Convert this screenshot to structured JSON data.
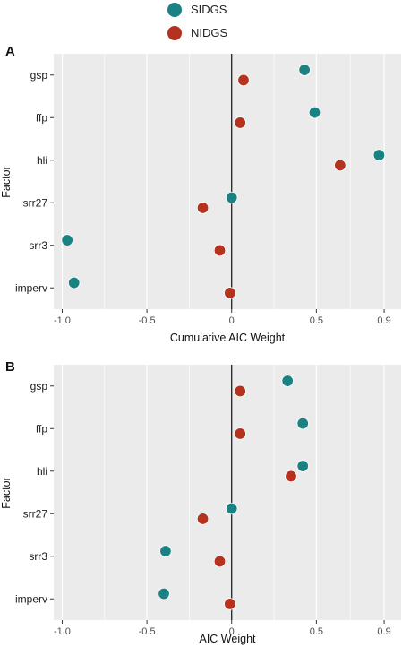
{
  "legend": {
    "items": [
      {
        "label": "SIDGS",
        "color": "#1a8282"
      },
      {
        "label": "NIDGS",
        "color": "#b5321f"
      }
    ]
  },
  "panel_style": {
    "background": "#ebebeb",
    "grid": "#ffffff",
    "zero_line": "#111111"
  },
  "chart_data": [
    {
      "type": "scatter",
      "panel_label": "A",
      "xlabel": "Cumulative AIC Weight",
      "ylabel": "Factor",
      "xlim": [
        -1.05,
        1.0
      ],
      "xticks": [
        -1.0,
        -0.5,
        0,
        0.5,
        0.9
      ],
      "xtick_labels": [
        "-1.0",
        "-0.5",
        "0",
        "0.5",
        "0.9"
      ],
      "categories": [
        "gsp",
        "ffp",
        "hli",
        "srr27",
        "srr3",
        "imperv"
      ],
      "grid": true,
      "legend": "top-center",
      "series": [
        {
          "name": "SIDGS",
          "values": [
            0.43,
            0.49,
            0.87,
            0.0,
            -0.97,
            -0.93
          ]
        },
        {
          "name": "NIDGS",
          "values": [
            0.07,
            0.05,
            0.64,
            -0.17,
            -0.07,
            -0.01
          ]
        }
      ]
    },
    {
      "type": "scatter",
      "panel_label": "B",
      "xlabel": "AIC Weight",
      "ylabel": "Factor",
      "xlim": [
        -1.05,
        1.0
      ],
      "xticks": [
        -1.0,
        -0.5,
        0,
        0.5,
        0.9
      ],
      "xtick_labels": [
        "-1.0",
        "-0.5",
        "0",
        "0.5",
        "0.9"
      ],
      "categories": [
        "gsp",
        "ffp",
        "hli",
        "srr27",
        "srr3",
        "imperv"
      ],
      "grid": true,
      "legend": "top-center",
      "series": [
        {
          "name": "SIDGS",
          "values": [
            0.33,
            0.42,
            0.42,
            0.0,
            -0.39,
            -0.4
          ]
        },
        {
          "name": "NIDGS",
          "values": [
            0.05,
            0.05,
            0.35,
            -0.17,
            -0.07,
            -0.01
          ]
        }
      ]
    }
  ]
}
